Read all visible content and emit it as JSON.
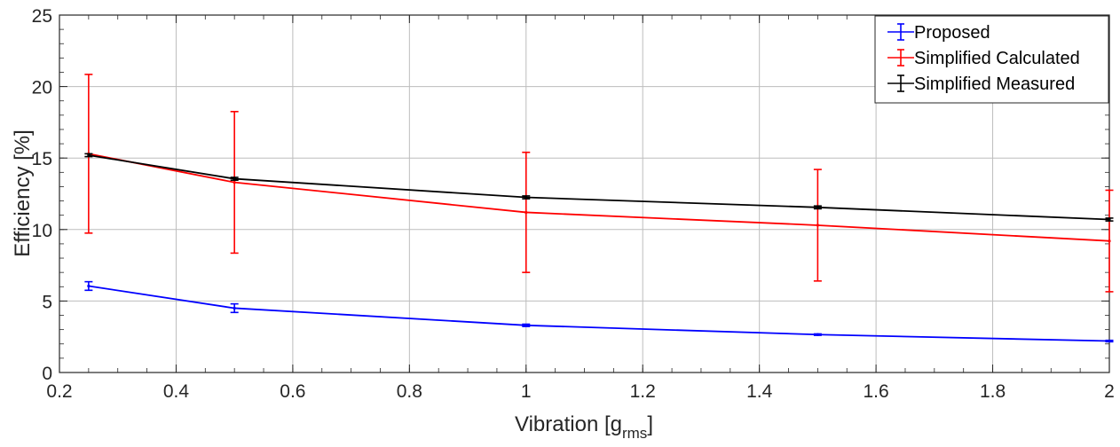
{
  "chart_data": {
    "type": "line",
    "xlabel": "Vibration [g",
    "xlabel_sub": "rms",
    "xlabel_suffix": "]",
    "ylabel": "Efficiency [%]",
    "xlim": [
      0.2,
      2.0
    ],
    "ylim": [
      0,
      25
    ],
    "xticks": [
      0.2,
      0.4,
      0.6,
      0.8,
      1.0,
      1.2,
      1.4,
      1.6,
      1.8,
      2.0
    ],
    "xtick_labels": [
      "0.2",
      "0.4",
      "0.6",
      "0.8",
      "1",
      "1.2",
      "1.4",
      "1.6",
      "1.8",
      "2"
    ],
    "yticks": [
      0,
      5,
      10,
      15,
      20,
      25
    ],
    "ytick_labels": [
      "0",
      "5",
      "10",
      "15",
      "20",
      "25"
    ],
    "grid": true,
    "legend_position": "top-right",
    "x": [
      0.25,
      0.5,
      1.0,
      1.5,
      2.0
    ],
    "series": [
      {
        "name": "Proposed",
        "color": "#0000ff",
        "values": [
          6.05,
          4.5,
          3.3,
          2.65,
          2.2
        ],
        "err": [
          0.3,
          0.3,
          0.08,
          0.05,
          0.05
        ]
      },
      {
        "name": "Simplified Calculated",
        "color": "#ff0000",
        "values": [
          15.3,
          13.3,
          11.2,
          10.3,
          9.2
        ],
        "err": [
          5.55,
          4.95,
          4.2,
          3.9,
          3.55
        ]
      },
      {
        "name": "Simplified Measured",
        "color": "#000000",
        "values": [
          15.2,
          13.55,
          12.25,
          11.55,
          10.7
        ],
        "err": [
          0.1,
          0.1,
          0.1,
          0.1,
          0.1
        ]
      }
    ]
  }
}
